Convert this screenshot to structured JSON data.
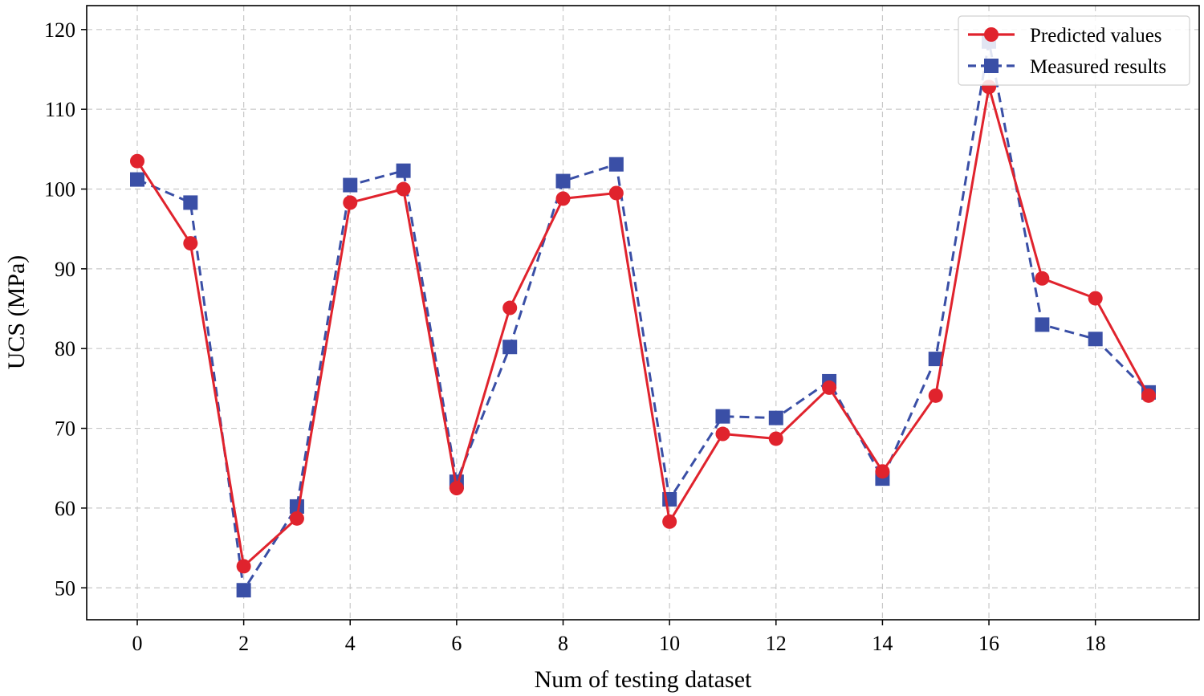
{
  "chart_data": {
    "type": "line",
    "title": "",
    "xlabel": "Num of testing dataset",
    "ylabel": "UCS (MPa)",
    "xlim": [
      -0.95,
      19.95
    ],
    "ylim": [
      46,
      123
    ],
    "grid": true,
    "legend_position": "top-right",
    "x_ticks": [
      0,
      2,
      4,
      6,
      8,
      10,
      12,
      14,
      16,
      18
    ],
    "y_ticks": [
      50,
      60,
      70,
      80,
      90,
      100,
      110,
      120
    ],
    "x": [
      0,
      1,
      2,
      3,
      4,
      5,
      6,
      7,
      8,
      9,
      10,
      11,
      12,
      13,
      14,
      15,
      16,
      17,
      18,
      19
    ],
    "series": [
      {
        "name": "Predicted values",
        "color": "#e0232d",
        "line_style": "solid",
        "marker": "circle",
        "values": [
          103.5,
          93.2,
          52.7,
          58.7,
          98.3,
          100.0,
          62.5,
          85.1,
          98.8,
          99.5,
          58.3,
          69.3,
          68.7,
          75.1,
          64.6,
          74.1,
          112.8,
          88.8,
          86.3,
          74.1
        ]
      },
      {
        "name": "Measured results",
        "color": "#3a4fa6",
        "line_style": "dashed",
        "marker": "square",
        "values": [
          101.2,
          98.3,
          49.7,
          60.2,
          100.5,
          102.3,
          63.3,
          80.2,
          101.0,
          103.1,
          61.1,
          71.5,
          71.3,
          75.9,
          63.7,
          78.7,
          118.5,
          83.0,
          81.2,
          74.5
        ]
      }
    ]
  }
}
